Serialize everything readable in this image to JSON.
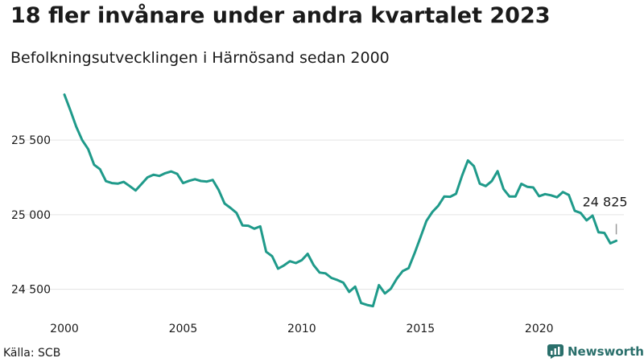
{
  "header": {
    "title": "18 fler invånare under andra kvartalet 2023",
    "subtitle": "Befolkningsutvecklingen i Härnösand sedan 2000"
  },
  "footer": {
    "source": "Källa: SCB",
    "brand": "Newsworthy"
  },
  "colors": {
    "line": "#1f9a8a",
    "grid": "#e3e3e3",
    "brand": "#2a6f6b"
  },
  "chart_data": {
    "type": "line",
    "title": "18 fler invånare under andra kvartalet 2023",
    "subtitle": "Befolkningsutvecklingen i Härnösand sedan 2000",
    "xlabel": "",
    "ylabel": "",
    "grid": "horizontal",
    "xlim": [
      2000.0,
      2023.4
    ],
    "ylim": [
      24390,
      25900
    ],
    "x_ticks": [
      2000,
      2005,
      2010,
      2015,
      2020
    ],
    "x_tick_labels": [
      "2000",
      "2005",
      "2010",
      "2015",
      "2020"
    ],
    "y_ticks": [
      24500,
      25000,
      25500
    ],
    "y_tick_labels": [
      "24 500",
      "25 000",
      "25 500"
    ],
    "annotation": {
      "x": 2023.25,
      "y": 24825,
      "text": "24 825"
    },
    "series": [
      {
        "x": [
          2000.0,
          2000.25,
          2000.5,
          2000.75,
          2001.0,
          2001.25,
          2001.5,
          2001.75,
          2002.0,
          2002.25,
          2002.5,
          2002.75,
          2003.0,
          2003.25,
          2003.5,
          2003.75,
          2004.0,
          2004.25,
          2004.5,
          2004.75,
          2005.0,
          2005.25,
          2005.5,
          2005.75,
          2006.0,
          2006.25,
          2006.5,
          2006.75,
          2007.0,
          2007.25,
          2007.5,
          2007.75,
          2008.0,
          2008.25,
          2008.5,
          2008.75,
          2009.0,
          2009.25,
          2009.5,
          2009.75,
          2010.0,
          2010.25,
          2010.5,
          2010.75,
          2011.0,
          2011.25,
          2011.5,
          2011.75,
          2012.0,
          2012.25,
          2012.5,
          2012.75,
          2013.0,
          2013.25,
          2013.5,
          2013.75,
          2014.0,
          2014.25,
          2014.5,
          2014.75,
          2015.0,
          2015.25,
          2015.5,
          2015.75,
          2016.0,
          2016.25,
          2016.5,
          2016.75,
          2017.0,
          2017.25,
          2017.5,
          2017.75,
          2018.0,
          2018.25,
          2018.5,
          2018.75,
          2019.0,
          2019.25,
          2019.5,
          2019.75,
          2020.0,
          2020.25,
          2020.5,
          2020.75,
          2021.0,
          2021.25,
          2021.5,
          2021.75,
          2022.0,
          2022.25,
          2022.5,
          2022.75,
          2023.0,
          2023.25
        ],
        "values": [
          25805,
          25700,
          25590,
          25500,
          25440,
          25335,
          25305,
          25225,
          25212,
          25208,
          25220,
          25192,
          25162,
          25206,
          25250,
          25268,
          25260,
          25278,
          25290,
          25274,
          25212,
          25227,
          25238,
          25226,
          25222,
          25233,
          25165,
          25075,
          25045,
          25012,
          24928,
          24926,
          24906,
          24922,
          24752,
          24722,
          24638,
          24660,
          24688,
          24676,
          24695,
          24738,
          24662,
          24612,
          24607,
          24576,
          24562,
          24544,
          24482,
          24518,
          24408,
          24395,
          24387,
          24528,
          24472,
          24503,
          24570,
          24622,
          24642,
          24740,
          24848,
          24958,
          25018,
          25060,
          25122,
          25120,
          25140,
          25260,
          25364,
          25325,
          25208,
          25192,
          25225,
          25292,
          25172,
          25122,
          25122,
          25207,
          25187,
          25183,
          25124,
          25138,
          25130,
          25117,
          25152,
          25132,
          25026,
          25012,
          24962,
          24994,
          24882,
          24878,
          24808,
          24825
        ]
      }
    ]
  }
}
